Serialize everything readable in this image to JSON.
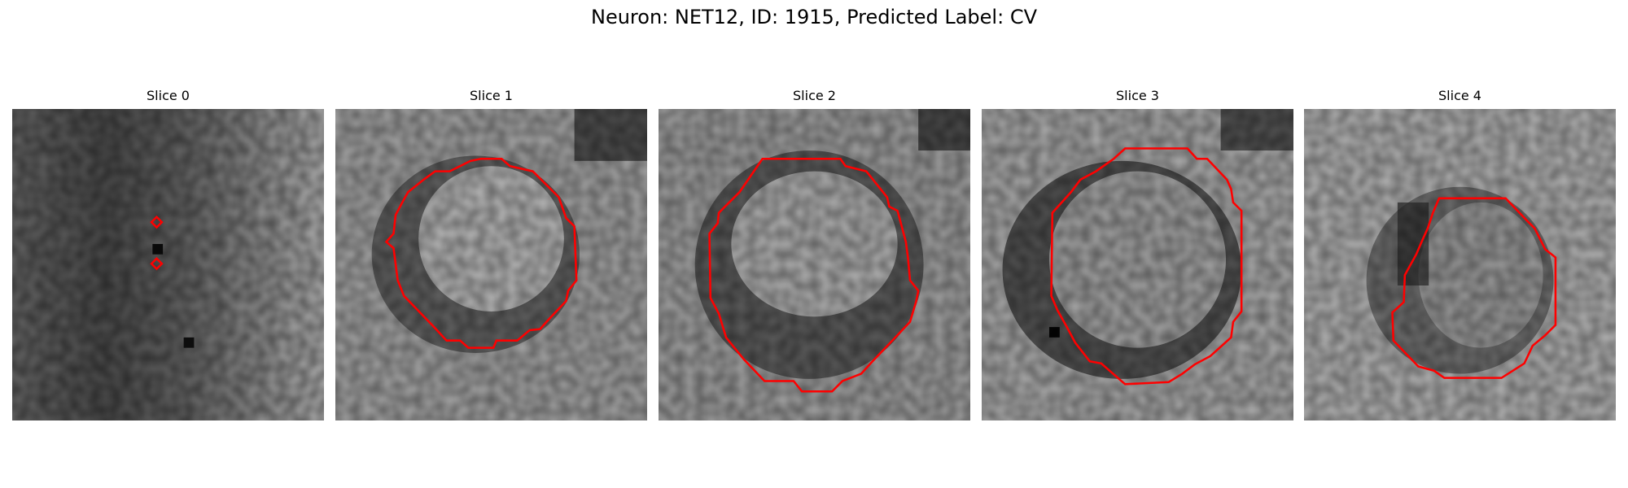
{
  "figure": {
    "title": "Neuron: NET12, ID: 1915, Predicted Label: CV"
  },
  "colors": {
    "contour": "#ff0000",
    "background": "#ffffff"
  },
  "panels": [
    {
      "title": "Slice 0"
    },
    {
      "title": "Slice 1"
    },
    {
      "title": "Slice 2"
    },
    {
      "title": "Slice 3"
    },
    {
      "title": "Slice 4"
    }
  ]
}
